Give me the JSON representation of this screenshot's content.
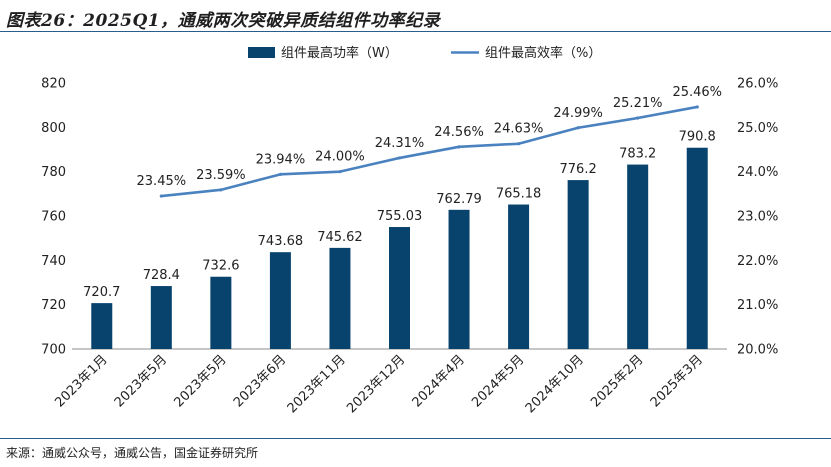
{
  "figure": {
    "title": "图表26：2025Q1，通威两次突破异质结组件功率纪录",
    "source": "来源：通威公众号，通威公告，国金证券研究所"
  },
  "colors": {
    "bar": "#08436d",
    "line": "#4a82c0",
    "rule": "#2b5d8c"
  },
  "chart_data": {
    "type": "bar",
    "categories": [
      "2023年1月",
      "2023年5月",
      "2023年5月",
      "2023年6月",
      "2023年11月",
      "2023年12月",
      "2024年4月",
      "2024年5月",
      "2024年10月",
      "2025年2月",
      "2025年3月"
    ],
    "series": [
      {
        "name": "组件最高功率（W）",
        "type": "bar",
        "axis": "left",
        "values": [
          720.7,
          728.4,
          732.6,
          743.68,
          745.62,
          755.03,
          762.79,
          765.18,
          776.2,
          783.2,
          790.8
        ],
        "labels": [
          "720.7",
          "728.4",
          "732.6",
          "743.68",
          "745.62",
          "755.03",
          "762.79",
          "765.18",
          "776.2",
          "783.2",
          "790.8"
        ]
      },
      {
        "name": "组件最高效率（%）",
        "type": "line",
        "axis": "right",
        "values": [
          null,
          23.45,
          23.59,
          23.94,
          24.0,
          24.31,
          24.56,
          24.63,
          24.99,
          25.21,
          25.46
        ],
        "labels": [
          "",
          "23.45%",
          "23.59%",
          "23.94%",
          "24.00%",
          "24.31%",
          "24.56%",
          "24.63%",
          "24.99%",
          "25.21%",
          "25.46%"
        ]
      }
    ],
    "y_left": {
      "min": 700,
      "max": 820,
      "ticks": [
        "700",
        "720",
        "740",
        "760",
        "780",
        "800",
        "820"
      ]
    },
    "y_right": {
      "min": 20,
      "max": 26,
      "ticks": [
        "20.0%",
        "21.0%",
        "22.0%",
        "23.0%",
        "24.0%",
        "25.0%",
        "26.0%"
      ]
    },
    "grid": false,
    "legend": "top-center"
  }
}
